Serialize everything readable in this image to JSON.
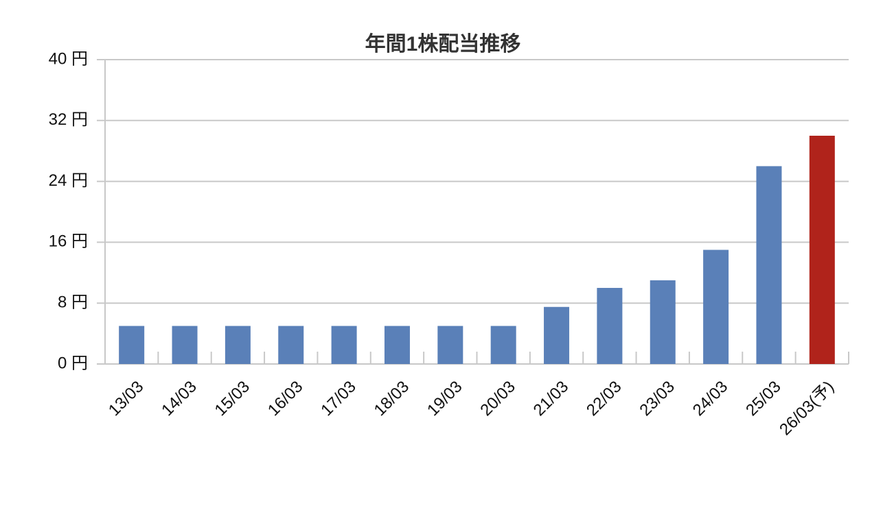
{
  "chart_data": {
    "type": "bar",
    "title": "年間1株配当推移",
    "categories": [
      "13/03",
      "14/03",
      "15/03",
      "16/03",
      "17/03",
      "18/03",
      "19/03",
      "20/03",
      "21/03",
      "22/03",
      "23/03",
      "24/03",
      "25/03",
      "26/03(予)"
    ],
    "values": [
      5,
      5,
      5,
      5,
      5,
      5,
      5,
      5,
      7.5,
      10,
      11,
      15,
      26,
      30
    ],
    "colors": [
      "#5a80b8",
      "#5a80b8",
      "#5a80b8",
      "#5a80b8",
      "#5a80b8",
      "#5a80b8",
      "#5a80b8",
      "#5a80b8",
      "#5a80b8",
      "#5a80b8",
      "#5a80b8",
      "#5a80b8",
      "#5a80b8",
      "#b0231b"
    ],
    "ylim": [
      0,
      40
    ],
    "yticks": [
      {
        "value": 0,
        "label": "0 円"
      },
      {
        "value": 8,
        "label": "8 円"
      },
      {
        "value": 16,
        "label": "16 円"
      },
      {
        "value": 24,
        "label": "24 円"
      },
      {
        "value": 32,
        "label": "32 円"
      },
      {
        "value": 40,
        "label": "40 円"
      }
    ],
    "grid": true
  }
}
